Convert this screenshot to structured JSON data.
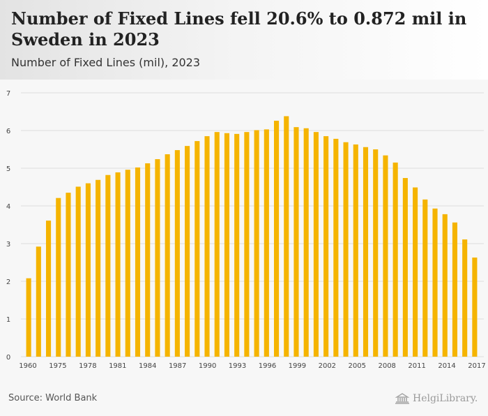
{
  "header": {
    "title": "Number of Fixed Lines fell 20.6% to 0.872 mil in Sweden in 2023",
    "subtitle": "Number of Fixed Lines (mil), 2023"
  },
  "footer": {
    "source": "Source: World Bank",
    "brand": "HelgiLibrary."
  },
  "colors": {
    "bar": "#f5b400",
    "grid": "#dcdcdc",
    "axis_text": "#444444"
  },
  "chart_data": {
    "type": "bar",
    "xlabel": "",
    "ylabel": "",
    "ylim": [
      0,
      7
    ],
    "yticks": [
      0,
      1,
      2,
      3,
      4,
      5,
      6,
      7
    ],
    "grid": true,
    "x_tick_labels": [
      "1960",
      "1975",
      "1978",
      "1981",
      "1984",
      "1987",
      "1990",
      "1993",
      "1996",
      "1999",
      "2002",
      "2005",
      "2008",
      "2011",
      "2014",
      "2017"
    ],
    "values": [
      2.08,
      2.92,
      3.61,
      4.21,
      4.35,
      4.51,
      4.6,
      4.69,
      4.82,
      4.89,
      4.96,
      5.02,
      5.13,
      5.24,
      5.37,
      5.48,
      5.59,
      5.72,
      5.85,
      5.96,
      5.93,
      5.91,
      5.96,
      6.01,
      6.03,
      6.26,
      6.38,
      6.09,
      6.06,
      5.96,
      5.85,
      5.78,
      5.69,
      5.63,
      5.56,
      5.5,
      5.34,
      5.15,
      4.74,
      4.49,
      4.17,
      3.93,
      3.78,
      3.56,
      3.11,
      2.63
    ]
  }
}
